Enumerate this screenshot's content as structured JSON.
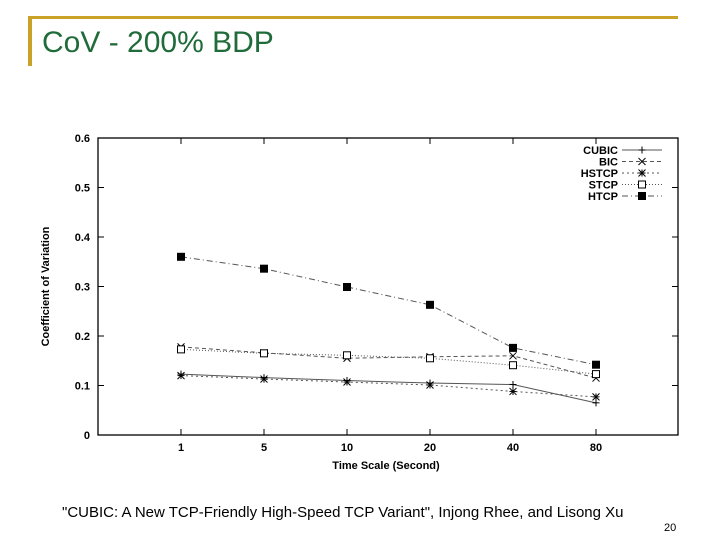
{
  "slide": {
    "title": "CoV - 200% BDP",
    "citation": "\"CUBIC: A New TCP-Friendly High-Speed TCP Variant\", Injong Rhee, and Lisong Xu",
    "page_number": "20",
    "accent_color": "#c9a227",
    "title_color": "#1f6b3a"
  },
  "chart_data": {
    "type": "line",
    "title": "",
    "xlabel": "Time Scale (Second)",
    "ylabel": "Coefficient of Variation",
    "categories": [
      "1",
      "5",
      "10",
      "20",
      "40",
      "80"
    ],
    "ylim": [
      0,
      0.6
    ],
    "yticks": [
      "0",
      "0.1",
      "0.2",
      "0.3",
      "0.4",
      "0.5",
      "0.6"
    ],
    "grid": false,
    "legend_position": "top-right",
    "series": [
      {
        "name": "CUBIC",
        "marker": "plus",
        "dash": "solid",
        "values": [
          0.123,
          0.116,
          0.11,
          0.105,
          0.102,
          0.065
        ]
      },
      {
        "name": "BIC",
        "marker": "cross",
        "dash": "dashed",
        "values": [
          0.178,
          0.166,
          0.155,
          0.158,
          0.16,
          0.115
        ]
      },
      {
        "name": "HSTCP",
        "marker": "asterisk",
        "dash": "dotted",
        "values": [
          0.12,
          0.113,
          0.107,
          0.101,
          0.088,
          0.077
        ]
      },
      {
        "name": "STCP",
        "marker": "open-square",
        "dash": "dotted-fine",
        "values": [
          0.173,
          0.165,
          0.161,
          0.155,
          0.141,
          0.123
        ]
      },
      {
        "name": "HTCP",
        "marker": "filled-square",
        "dash": "dashdot",
        "values": [
          0.36,
          0.336,
          0.299,
          0.263,
          0.176,
          0.142
        ]
      }
    ]
  }
}
